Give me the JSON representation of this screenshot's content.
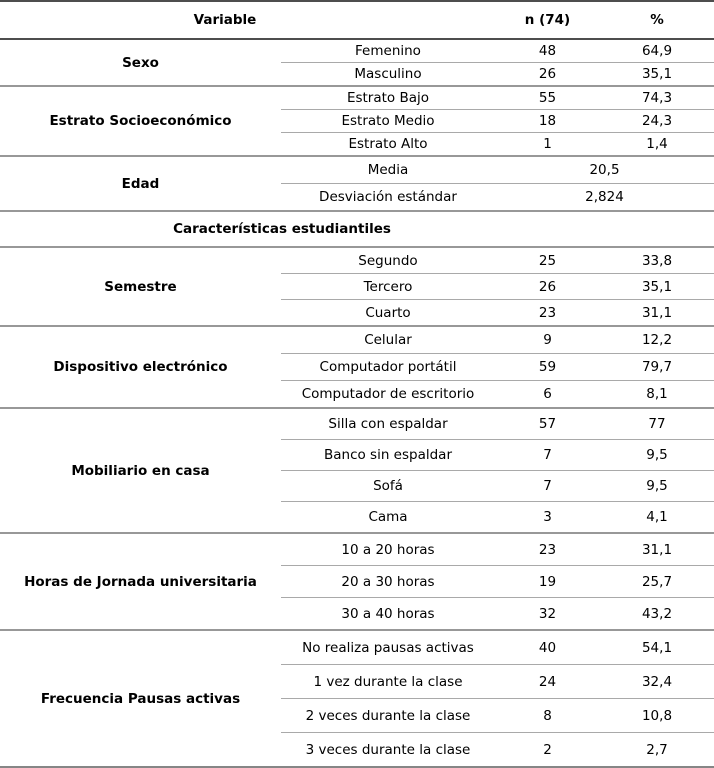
{
  "table": {
    "header": {
      "variable": "Variable",
      "n": "n (74)",
      "pct": "%"
    },
    "section_title": "Características estudiantiles",
    "groups": [
      {
        "name": "Sexo",
        "rows": [
          {
            "label": "Femenino",
            "n": "48",
            "pct": "64,9"
          },
          {
            "label": "Masculino",
            "n": "26",
            "pct": "35,1"
          }
        ]
      },
      {
        "name": "Estrato Socioeconómico",
        "rows": [
          {
            "label": "Estrato Bajo",
            "n": "55",
            "pct": "74,3"
          },
          {
            "label": "Estrato Medio",
            "n": "18",
            "pct": "24,3"
          },
          {
            "label": "Estrato Alto",
            "n": "1",
            "pct": "1,4"
          }
        ]
      },
      {
        "name": "Edad",
        "rows": [
          {
            "label": "Media",
            "value": "20,5"
          },
          {
            "label": "Desviación estándar",
            "value": "2,824"
          }
        ]
      },
      {
        "name": "Semestre",
        "rows": [
          {
            "label": "Segundo",
            "n": "25",
            "pct": "33,8"
          },
          {
            "label": "Tercero",
            "n": "26",
            "pct": "35,1"
          },
          {
            "label": "Cuarto",
            "n": "23",
            "pct": "31,1"
          }
        ]
      },
      {
        "name": "Dispositivo electrónico",
        "rows": [
          {
            "label": "Celular",
            "n": "9",
            "pct": "12,2"
          },
          {
            "label": "Computador portátil",
            "n": "59",
            "pct": "79,7"
          },
          {
            "label": "Computador de escritorio",
            "n": "6",
            "pct": "8,1"
          }
        ]
      },
      {
        "name": "Mobiliario en casa",
        "rows": [
          {
            "label": "Silla con espaldar",
            "n": "57",
            "pct": "77"
          },
          {
            "label": "Banco sin espaldar",
            "n": "7",
            "pct": "9,5"
          },
          {
            "label": "Sofá",
            "n": "7",
            "pct": "9,5"
          },
          {
            "label": "Cama",
            "n": "3",
            "pct": "4,1"
          }
        ]
      },
      {
        "name": "Horas de Jornada universitaria",
        "rows": [
          {
            "label": "10 a 20 horas",
            "n": "23",
            "pct": "31,1"
          },
          {
            "label": "20 a 30 horas",
            "n": "19",
            "pct": "25,7"
          },
          {
            "label": "30 a 40 horas",
            "n": "32",
            "pct": "43,2"
          }
        ]
      },
      {
        "name": "Frecuencia Pausas activas",
        "rows": [
          {
            "label": "No realiza pausas activas",
            "n": "40",
            "pct": "54,1"
          },
          {
            "label": "1 vez durante la clase",
            "n": "24",
            "pct": "32,4"
          },
          {
            "label": "2 veces durante la clase",
            "n": "8",
            "pct": "10,8"
          },
          {
            "label": "3 veces durante la clase",
            "n": "2",
            "pct": "2,7"
          }
        ]
      }
    ]
  }
}
